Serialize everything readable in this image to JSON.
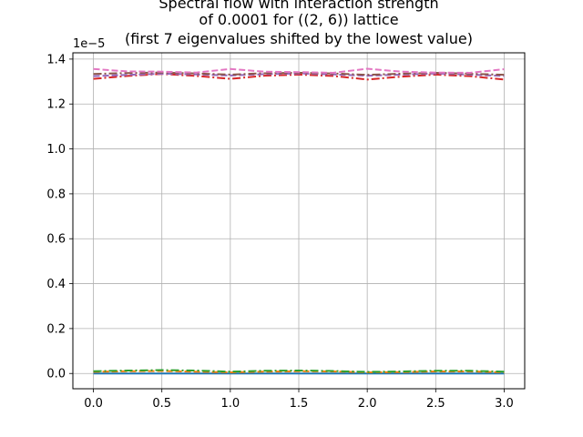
{
  "chart_data": {
    "type": "line",
    "title_lines": [
      "Spectral flow with interaction strength",
      "of 0.0001 for ((2, 6)) lattice",
      "(first 7 eigenvalues shifted by the lowest value)"
    ],
    "xlabel": "",
    "ylabel": "",
    "y_offset_label": "1e−5",
    "xlim": [
      -0.15,
      3.15
    ],
    "ylim": [
      -0.068,
      1.428
    ],
    "grid": true,
    "x_ticks": [
      0.0,
      0.5,
      1.0,
      1.5,
      2.0,
      2.5,
      3.0
    ],
    "x_tick_labels": [
      "0.0",
      "0.5",
      "1.0",
      "1.5",
      "2.0",
      "2.5",
      "3.0"
    ],
    "y_ticks": [
      0.0,
      0.2,
      0.4,
      0.6,
      0.8,
      1.0,
      1.2,
      1.4
    ],
    "y_tick_labels": [
      "0.0",
      "0.2",
      "0.4",
      "0.6",
      "0.8",
      "1.0",
      "1.2",
      "1.4"
    ],
    "x": [
      0.0,
      0.25,
      0.5,
      0.75,
      1.0,
      1.25,
      1.5,
      1.75,
      2.0,
      2.25,
      2.5,
      2.75,
      3.0
    ],
    "series": [
      {
        "color": "#1f77b4",
        "dash": "solid",
        "values": [
          0.0,
          0.0,
          0.0,
          0.0,
          0.0,
          0.0,
          0.0,
          0.0,
          0.0,
          0.0,
          0.0,
          0.0,
          0.0
        ]
      },
      {
        "color": "#ff7f0e",
        "dash": "dashed",
        "values": [
          0.007,
          0.01,
          0.011,
          0.008,
          0.005,
          0.008,
          0.01,
          0.009,
          0.005,
          0.006,
          0.009,
          0.009,
          0.005
        ]
      },
      {
        "color": "#2ca02c",
        "dash": "dashdot",
        "values": [
          0.01,
          0.013,
          0.015,
          0.013,
          0.008,
          0.012,
          0.013,
          0.011,
          0.007,
          0.009,
          0.012,
          0.012,
          0.008
        ]
      },
      {
        "color": "#d62728",
        "dash": "dashdot",
        "values": [
          1.312,
          1.325,
          1.334,
          1.325,
          1.312,
          1.326,
          1.331,
          1.325,
          1.309,
          1.322,
          1.331,
          1.324,
          1.309
        ]
      },
      {
        "color": "#9467bd",
        "dash": "dashed",
        "values": [
          1.324,
          1.33,
          1.335,
          1.332,
          1.327,
          1.333,
          1.336,
          1.332,
          1.326,
          1.331,
          1.336,
          1.331,
          1.325
        ]
      },
      {
        "color": "#8c564b",
        "dash": "dashdot",
        "values": [
          1.334,
          1.338,
          1.34,
          1.336,
          1.331,
          1.337,
          1.339,
          1.336,
          1.33,
          1.335,
          1.339,
          1.335,
          1.33
        ]
      },
      {
        "color": "#e377c2",
        "dash": "dashed",
        "values": [
          1.356,
          1.345,
          1.344,
          1.34,
          1.356,
          1.344,
          1.342,
          1.339,
          1.357,
          1.344,
          1.34,
          1.339,
          1.355
        ]
      }
    ]
  }
}
